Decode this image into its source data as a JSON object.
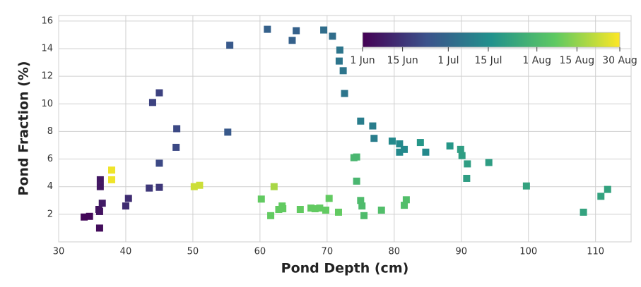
{
  "chart_data": {
    "type": "scatter",
    "xlabel": "Pond Depth (cm)",
    "ylabel": "Pond Fraction (%)",
    "xlim": [
      30,
      115.3
    ],
    "ylim": [
      0,
      16.4
    ],
    "xticks": [
      30,
      40,
      50,
      60,
      70,
      80,
      90,
      100,
      110
    ],
    "yticks": [
      2,
      4,
      6,
      8,
      10,
      12,
      14,
      16
    ],
    "grid": true,
    "x": [
      33.8,
      34.6,
      36.1,
      36.1,
      36.0,
      36.2,
      36.2,
      36.5,
      40.0,
      40.4,
      43.5,
      45.0,
      44.0,
      45.0,
      45.0,
      47.6,
      47.5,
      55.2,
      55.5,
      61.1,
      64.8,
      65.4,
      69.5,
      70.8,
      71.9,
      71.8,
      72.4,
      72.6,
      75.0,
      76.8,
      77.0,
      79.7,
      80.8,
      80.8,
      81.5,
      84.7,
      83.9,
      88.3,
      89.9,
      90.1,
      90.9,
      90.8,
      94.1,
      99.7,
      108.2,
      110.8,
      111.8,
      74.0,
      74.4,
      74.4,
      75.0,
      75.2,
      75.5,
      78.1,
      81.5,
      81.8,
      60.2,
      61.6,
      62.8,
      63.3,
      63.4,
      66.0,
      67.6,
      68.2,
      68.9,
      69.8,
      70.3,
      71.7,
      62.1,
      50.2,
      51.0,
      37.9,
      37.9
    ],
    "y": [
      1.8,
      1.85,
      1.0,
      2.2,
      2.35,
      4.0,
      4.5,
      2.8,
      2.6,
      3.15,
      3.9,
      3.95,
      10.1,
      10.8,
      5.7,
      8.2,
      6.85,
      7.95,
      14.25,
      15.4,
      14.6,
      15.3,
      15.35,
      14.9,
      13.9,
      13.1,
      12.4,
      10.75,
      8.75,
      8.4,
      7.5,
      7.3,
      7.1,
      6.5,
      6.7,
      6.5,
      7.2,
      6.95,
      6.7,
      6.25,
      5.65,
      4.6,
      5.75,
      4.05,
      2.15,
      3.3,
      3.8,
      6.1,
      6.15,
      4.4,
      3.0,
      2.6,
      1.9,
      2.3,
      2.65,
      3.05,
      3.1,
      1.9,
      2.35,
      2.6,
      2.4,
      2.35,
      2.45,
      2.4,
      2.45,
      2.3,
      3.15,
      2.15,
      4.0,
      4.0,
      4.1,
      5.2,
      4.5
    ],
    "c": [
      2,
      2,
      3,
      5,
      5,
      6,
      6,
      7,
      12,
      12,
      15,
      15,
      18,
      18,
      20,
      20,
      20,
      25,
      25,
      28,
      28,
      28,
      32,
      32,
      35,
      35,
      35,
      35,
      38,
      38,
      38,
      42,
      42,
      42,
      42,
      42,
      47,
      47,
      50,
      50,
      50,
      50,
      50,
      52,
      52,
      52,
      52,
      60,
      60,
      60,
      62,
      62,
      62,
      63,
      63,
      63,
      68,
      68,
      68,
      68,
      68,
      68,
      68,
      68,
      68,
      68,
      68,
      68,
      78,
      83,
      83,
      88,
      88
    ],
    "colormap": [
      "#440154",
      "#3b528b",
      "#21918c",
      "#5ec962",
      "#fde725"
    ],
    "colorbar": {
      "lim": [
        0,
        90
      ],
      "ticks": [
        {
          "value": 0,
          "label": "1 Jun"
        },
        {
          "value": 14,
          "label": "15 Jun"
        },
        {
          "value": 30,
          "label": "1 Jul"
        },
        {
          "value": 44,
          "label": "15 Jul"
        },
        {
          "value": 61,
          "label": "1 Aug"
        },
        {
          "value": 75,
          "label": "15 Aug"
        },
        {
          "value": 90,
          "label": "30 Aug"
        }
      ]
    }
  }
}
